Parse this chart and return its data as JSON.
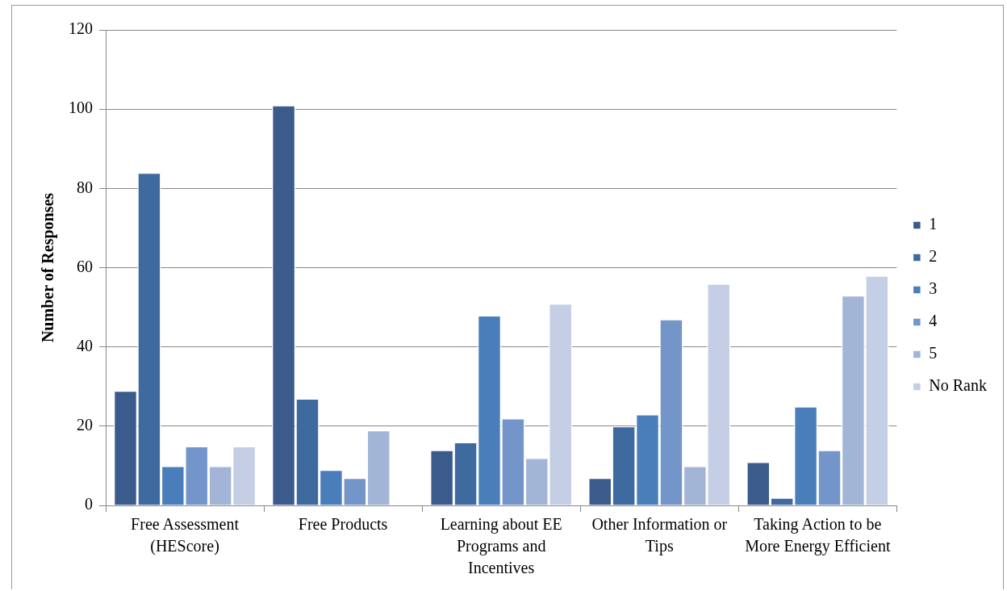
{
  "chart_data": {
    "type": "bar",
    "ylabel": "Number of Responses",
    "categories": [
      "Free Assessment (HEScore)",
      "Free Products",
      "Learning about EE Programs and Incentives",
      "Other Information or Tips",
      "Taking Action to be More Energy Efficient"
    ],
    "series": [
      {
        "name": "1",
        "color": "#3a5b8c",
        "values": [
          29,
          101,
          14,
          7,
          11
        ]
      },
      {
        "name": "2",
        "color": "#3e6aa0",
        "values": [
          84,
          27,
          16,
          20,
          2
        ]
      },
      {
        "name": "3",
        "color": "#4a7ebb",
        "values": [
          10,
          9,
          48,
          23,
          25
        ]
      },
      {
        "name": "4",
        "color": "#7395c9",
        "values": [
          15,
          7,
          22,
          47,
          14
        ]
      },
      {
        "name": "5",
        "color": "#a3b5d7",
        "values": [
          10,
          19,
          12,
          10,
          53
        ]
      },
      {
        "name": "No Rank",
        "color": "#c4cee4",
        "values": [
          15,
          null,
          51,
          56,
          58
        ]
      }
    ],
    "ylim": [
      0,
      120
    ],
    "yticks": [
      0,
      20,
      40,
      60,
      80,
      100,
      120
    ],
    "grid": "y",
    "legend": "right"
  }
}
